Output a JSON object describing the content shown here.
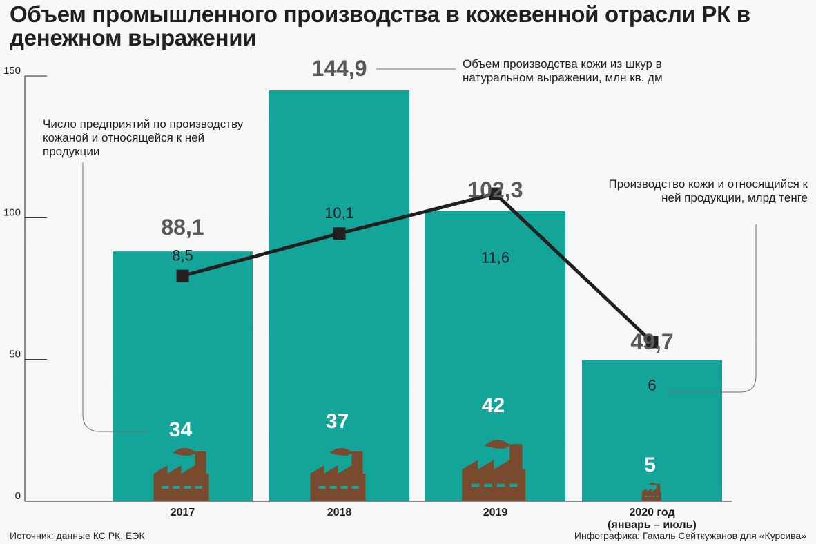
{
  "title": "Объем промышленного производства в кожевенной отрасли РК в денежном выражении",
  "annotations": {
    "enterprises_note": "Число предприятий по производству кожаной и относящейся к ней продукции",
    "leather_volume_note": "Объем производства кожи из шкур в натуральном выражении, млн кв. дм",
    "money_note": "Производство кожи и относящийся к ней продукции, млрд тенге"
  },
  "footer": {
    "source": "Источник: данные КС РК, ЕЭК",
    "credit": "Инфографика: Гамаль Сейткужанов для «Курсива»"
  },
  "watermark": "КУРСИВ",
  "colors": {
    "bar": "#13a59a",
    "line": "#231f20",
    "factory": "#7a4a2e",
    "text": "#231f20",
    "bar_label": "#58595b",
    "count_label": "#ffffff"
  },
  "chart_data": {
    "type": "bar",
    "categories": [
      "2017",
      "2018",
      "2019",
      "2020 год\n(январь – июль)"
    ],
    "category_lines": [
      [
        "2017"
      ],
      [
        "2018"
      ],
      [
        "2019"
      ],
      [
        "2020 год",
        "(январь – июль)"
      ]
    ],
    "ylim": [
      0,
      150
    ],
    "yticks": [
      0,
      50,
      100,
      150
    ],
    "ytick_labels": [
      "0",
      "50",
      "100",
      "150"
    ],
    "series": [
      {
        "name": "Производство кожи и относящийся к ней продукции, млрд тенге",
        "type": "bar",
        "values": [
          88.1,
          144.9,
          102.3,
          49.7
        ],
        "labels": [
          "88,1",
          "144,9",
          "102,3",
          "49,7"
        ]
      },
      {
        "name": "Объем производства кожи из шкур в натуральном выражении, млн кв. дм",
        "type": "line",
        "values": [
          8.5,
          10.1,
          11.6,
          6
        ],
        "labels": [
          "8,5",
          "10,1",
          "11,6",
          "6"
        ]
      },
      {
        "name": "Число предприятий по производству кожаной и относящейся к ней продукции",
        "type": "icon",
        "values": [
          34,
          37,
          42,
          5
        ],
        "labels": [
          "34",
          "37",
          "42",
          "5"
        ]
      }
    ]
  }
}
